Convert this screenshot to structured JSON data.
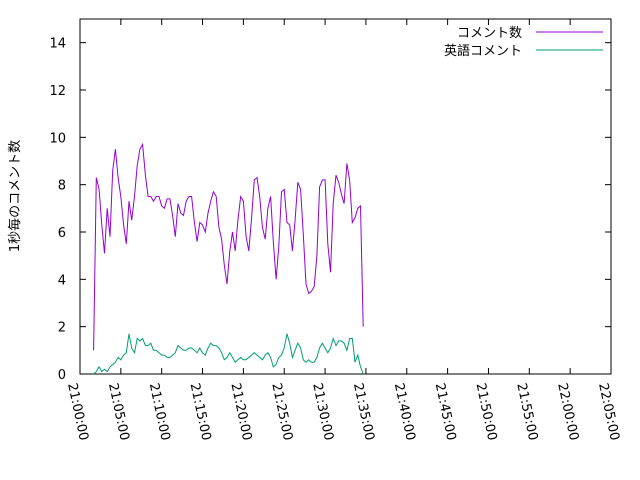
{
  "chart_data": {
    "type": "line",
    "title": "",
    "xlabel": "",
    "ylabel": "1秒毎のコメント数",
    "xlim": [
      "21:00:00",
      "22:05:00"
    ],
    "ylim": [
      0,
      15
    ],
    "x_ticks": [
      "21:00:00",
      "21:05:00",
      "21:10:00",
      "21:15:00",
      "21:20:00",
      "21:25:00",
      "21:30:00",
      "21:35:00",
      "21:40:00",
      "21:45:00",
      "21:50:00",
      "21:55:00",
      "22:00:00",
      "22:05:00"
    ],
    "y_ticks": [
      0,
      2,
      4,
      6,
      8,
      10,
      12,
      14
    ],
    "grid": false,
    "legend_position": "top-right",
    "series": [
      {
        "name": "コメント数",
        "color": "#9400d3",
        "points": [
          [
            "21:01:40",
            1.0
          ],
          [
            "21:02:00",
            8.3
          ],
          [
            "21:02:20",
            7.8
          ],
          [
            "21:02:40",
            6.3
          ],
          [
            "21:03:00",
            5.1
          ],
          [
            "21:03:20",
            7.0
          ],
          [
            "21:03:40",
            5.8
          ],
          [
            "21:04:00",
            8.6
          ],
          [
            "21:04:20",
            9.5
          ],
          [
            "21:04:40",
            8.3
          ],
          [
            "21:05:00",
            7.5
          ],
          [
            "21:05:20",
            6.3
          ],
          [
            "21:05:40",
            5.5
          ],
          [
            "21:06:00",
            7.3
          ],
          [
            "21:06:20",
            6.5
          ],
          [
            "21:06:40",
            7.5
          ],
          [
            "21:07:00",
            8.8
          ],
          [
            "21:07:20",
            9.5
          ],
          [
            "21:07:40",
            9.7
          ],
          [
            "21:08:00",
            8.4
          ],
          [
            "21:08:20",
            7.5
          ],
          [
            "21:08:40",
            7.5
          ],
          [
            "21:09:00",
            7.3
          ],
          [
            "21:09:20",
            7.5
          ],
          [
            "21:09:40",
            7.5
          ],
          [
            "21:10:00",
            7.1
          ],
          [
            "21:10:20",
            7.0
          ],
          [
            "21:10:40",
            7.4
          ],
          [
            "21:11:00",
            7.4
          ],
          [
            "21:11:20",
            6.7
          ],
          [
            "21:11:40",
            5.8
          ],
          [
            "21:12:00",
            7.2
          ],
          [
            "21:12:20",
            6.8
          ],
          [
            "21:12:40",
            6.7
          ],
          [
            "21:13:00",
            7.3
          ],
          [
            "21:13:20",
            7.5
          ],
          [
            "21:13:40",
            7.5
          ],
          [
            "21:14:00",
            6.4
          ],
          [
            "21:14:20",
            5.6
          ],
          [
            "21:14:40",
            6.4
          ],
          [
            "21:15:00",
            6.3
          ],
          [
            "21:15:20",
            6.0
          ],
          [
            "21:15:40",
            6.8
          ],
          [
            "21:16:00",
            7.3
          ],
          [
            "21:16:20",
            7.7
          ],
          [
            "21:16:40",
            7.5
          ],
          [
            "21:17:00",
            6.2
          ],
          [
            "21:17:20",
            5.7
          ],
          [
            "21:17:40",
            4.6
          ],
          [
            "21:18:00",
            3.8
          ],
          [
            "21:18:20",
            5.2
          ],
          [
            "21:18:40",
            6.0
          ],
          [
            "21:19:00",
            5.2
          ],
          [
            "21:19:20",
            6.5
          ],
          [
            "21:19:40",
            7.5
          ],
          [
            "21:20:00",
            7.3
          ],
          [
            "21:20:20",
            5.8
          ],
          [
            "21:20:40",
            5.2
          ],
          [
            "21:21:00",
            6.6
          ],
          [
            "21:21:20",
            8.2
          ],
          [
            "21:21:40",
            8.3
          ],
          [
            "21:22:00",
            7.5
          ],
          [
            "21:22:20",
            6.2
          ],
          [
            "21:22:40",
            5.7
          ],
          [
            "21:23:00",
            7.0
          ],
          [
            "21:23:20",
            7.5
          ],
          [
            "21:23:40",
            5.6
          ],
          [
            "21:24:00",
            4.0
          ],
          [
            "21:24:20",
            5.4
          ],
          [
            "21:24:40",
            7.7
          ],
          [
            "21:25:00",
            7.8
          ],
          [
            "21:25:20",
            6.4
          ],
          [
            "21:25:40",
            6.3
          ],
          [
            "21:26:00",
            5.2
          ],
          [
            "21:26:20",
            6.5
          ],
          [
            "21:26:40",
            8.1
          ],
          [
            "21:27:00",
            7.8
          ],
          [
            "21:27:20",
            5.9
          ],
          [
            "21:27:40",
            3.8
          ],
          [
            "21:28:00",
            3.4
          ],
          [
            "21:28:20",
            3.5
          ],
          [
            "21:28:40",
            3.7
          ],
          [
            "21:29:00",
            5.0
          ],
          [
            "21:29:20",
            7.9
          ],
          [
            "21:29:40",
            8.2
          ],
          [
            "21:30:00",
            8.2
          ],
          [
            "21:30:20",
            5.5
          ],
          [
            "21:30:40",
            4.3
          ],
          [
            "21:31:00",
            7.2
          ],
          [
            "21:31:20",
            8.4
          ],
          [
            "21:31:40",
            8.1
          ],
          [
            "21:32:00",
            7.6
          ],
          [
            "21:32:20",
            7.2
          ],
          [
            "21:32:40",
            8.9
          ],
          [
            "21:33:00",
            8.2
          ],
          [
            "21:33:20",
            6.4
          ],
          [
            "21:33:40",
            6.6
          ],
          [
            "21:34:00",
            7.0
          ],
          [
            "21:34:20",
            7.1
          ],
          [
            "21:34:40",
            2.0
          ]
        ]
      },
      {
        "name": "英語コメント",
        "color": "#009e73",
        "points": [
          [
            "21:01:40",
            0.0
          ],
          [
            "21:02:00",
            0.1
          ],
          [
            "21:02:20",
            0.3
          ],
          [
            "21:02:40",
            0.1
          ],
          [
            "21:03:00",
            0.2
          ],
          [
            "21:03:20",
            0.1
          ],
          [
            "21:03:40",
            0.3
          ],
          [
            "21:04:00",
            0.4
          ],
          [
            "21:04:20",
            0.5
          ],
          [
            "21:04:40",
            0.7
          ],
          [
            "21:05:00",
            0.6
          ],
          [
            "21:05:20",
            0.8
          ],
          [
            "21:05:40",
            0.9
          ],
          [
            "21:06:00",
            1.7
          ],
          [
            "21:06:20",
            1.1
          ],
          [
            "21:06:40",
            0.9
          ],
          [
            "21:07:00",
            1.5
          ],
          [
            "21:07:20",
            1.4
          ],
          [
            "21:07:40",
            1.5
          ],
          [
            "21:08:00",
            1.2
          ],
          [
            "21:08:20",
            1.2
          ],
          [
            "21:08:40",
            1.3
          ],
          [
            "21:09:00",
            1.0
          ],
          [
            "21:09:20",
            1.0
          ],
          [
            "21:09:40",
            0.9
          ],
          [
            "21:10:00",
            0.8
          ],
          [
            "21:10:20",
            0.8
          ],
          [
            "21:10:40",
            0.7
          ],
          [
            "21:11:00",
            0.7
          ],
          [
            "21:11:20",
            0.8
          ],
          [
            "21:11:40",
            0.9
          ],
          [
            "21:12:00",
            1.2
          ],
          [
            "21:12:20",
            1.1
          ],
          [
            "21:12:40",
            1.0
          ],
          [
            "21:13:00",
            1.0
          ],
          [
            "21:13:20",
            1.1
          ],
          [
            "21:13:40",
            1.1
          ],
          [
            "21:14:00",
            1.0
          ],
          [
            "21:14:20",
            0.9
          ],
          [
            "21:14:40",
            1.1
          ],
          [
            "21:15:00",
            0.9
          ],
          [
            "21:15:20",
            0.8
          ],
          [
            "21:15:40",
            1.1
          ],
          [
            "21:16:00",
            1.3
          ],
          [
            "21:16:20",
            1.2
          ],
          [
            "21:16:40",
            1.2
          ],
          [
            "21:17:00",
            1.1
          ],
          [
            "21:17:20",
            0.9
          ],
          [
            "21:17:40",
            0.6
          ],
          [
            "21:18:00",
            0.7
          ],
          [
            "21:18:20",
            0.9
          ],
          [
            "21:18:40",
            0.7
          ],
          [
            "21:19:00",
            0.5
          ],
          [
            "21:19:20",
            0.6
          ],
          [
            "21:19:40",
            0.7
          ],
          [
            "21:20:00",
            0.6
          ],
          [
            "21:20:20",
            0.6
          ],
          [
            "21:20:40",
            0.7
          ],
          [
            "21:21:00",
            0.8
          ],
          [
            "21:21:20",
            0.9
          ],
          [
            "21:21:40",
            0.8
          ],
          [
            "21:22:00",
            0.7
          ],
          [
            "21:22:20",
            0.6
          ],
          [
            "21:22:40",
            0.8
          ],
          [
            "21:23:00",
            0.9
          ],
          [
            "21:23:20",
            0.7
          ],
          [
            "21:23:40",
            0.3
          ],
          [
            "21:24:00",
            0.4
          ],
          [
            "21:24:20",
            0.7
          ],
          [
            "21:24:40",
            0.8
          ],
          [
            "21:25:00",
            1.1
          ],
          [
            "21:25:20",
            1.7
          ],
          [
            "21:25:40",
            1.3
          ],
          [
            "21:26:00",
            0.7
          ],
          [
            "21:26:20",
            1.0
          ],
          [
            "21:26:40",
            1.3
          ],
          [
            "21:27:00",
            1.1
          ],
          [
            "21:27:20",
            0.6
          ],
          [
            "21:27:40",
            0.5
          ],
          [
            "21:28:00",
            0.6
          ],
          [
            "21:28:20",
            0.5
          ],
          [
            "21:28:40",
            0.5
          ],
          [
            "21:29:00",
            0.7
          ],
          [
            "21:29:20",
            1.1
          ],
          [
            "21:29:40",
            1.3
          ],
          [
            "21:30:00",
            1.1
          ],
          [
            "21:30:20",
            0.9
          ],
          [
            "21:30:40",
            1.1
          ],
          [
            "21:31:00",
            1.5
          ],
          [
            "21:31:20",
            1.2
          ],
          [
            "21:31:40",
            1.4
          ],
          [
            "21:32:00",
            1.4
          ],
          [
            "21:32:20",
            1.3
          ],
          [
            "21:32:40",
            1.0
          ],
          [
            "21:33:00",
            1.5
          ],
          [
            "21:33:20",
            1.5
          ],
          [
            "21:33:40",
            0.5
          ],
          [
            "21:34:00",
            0.8
          ],
          [
            "21:34:20",
            0.3
          ],
          [
            "21:34:40",
            0.0
          ]
        ]
      }
    ]
  }
}
